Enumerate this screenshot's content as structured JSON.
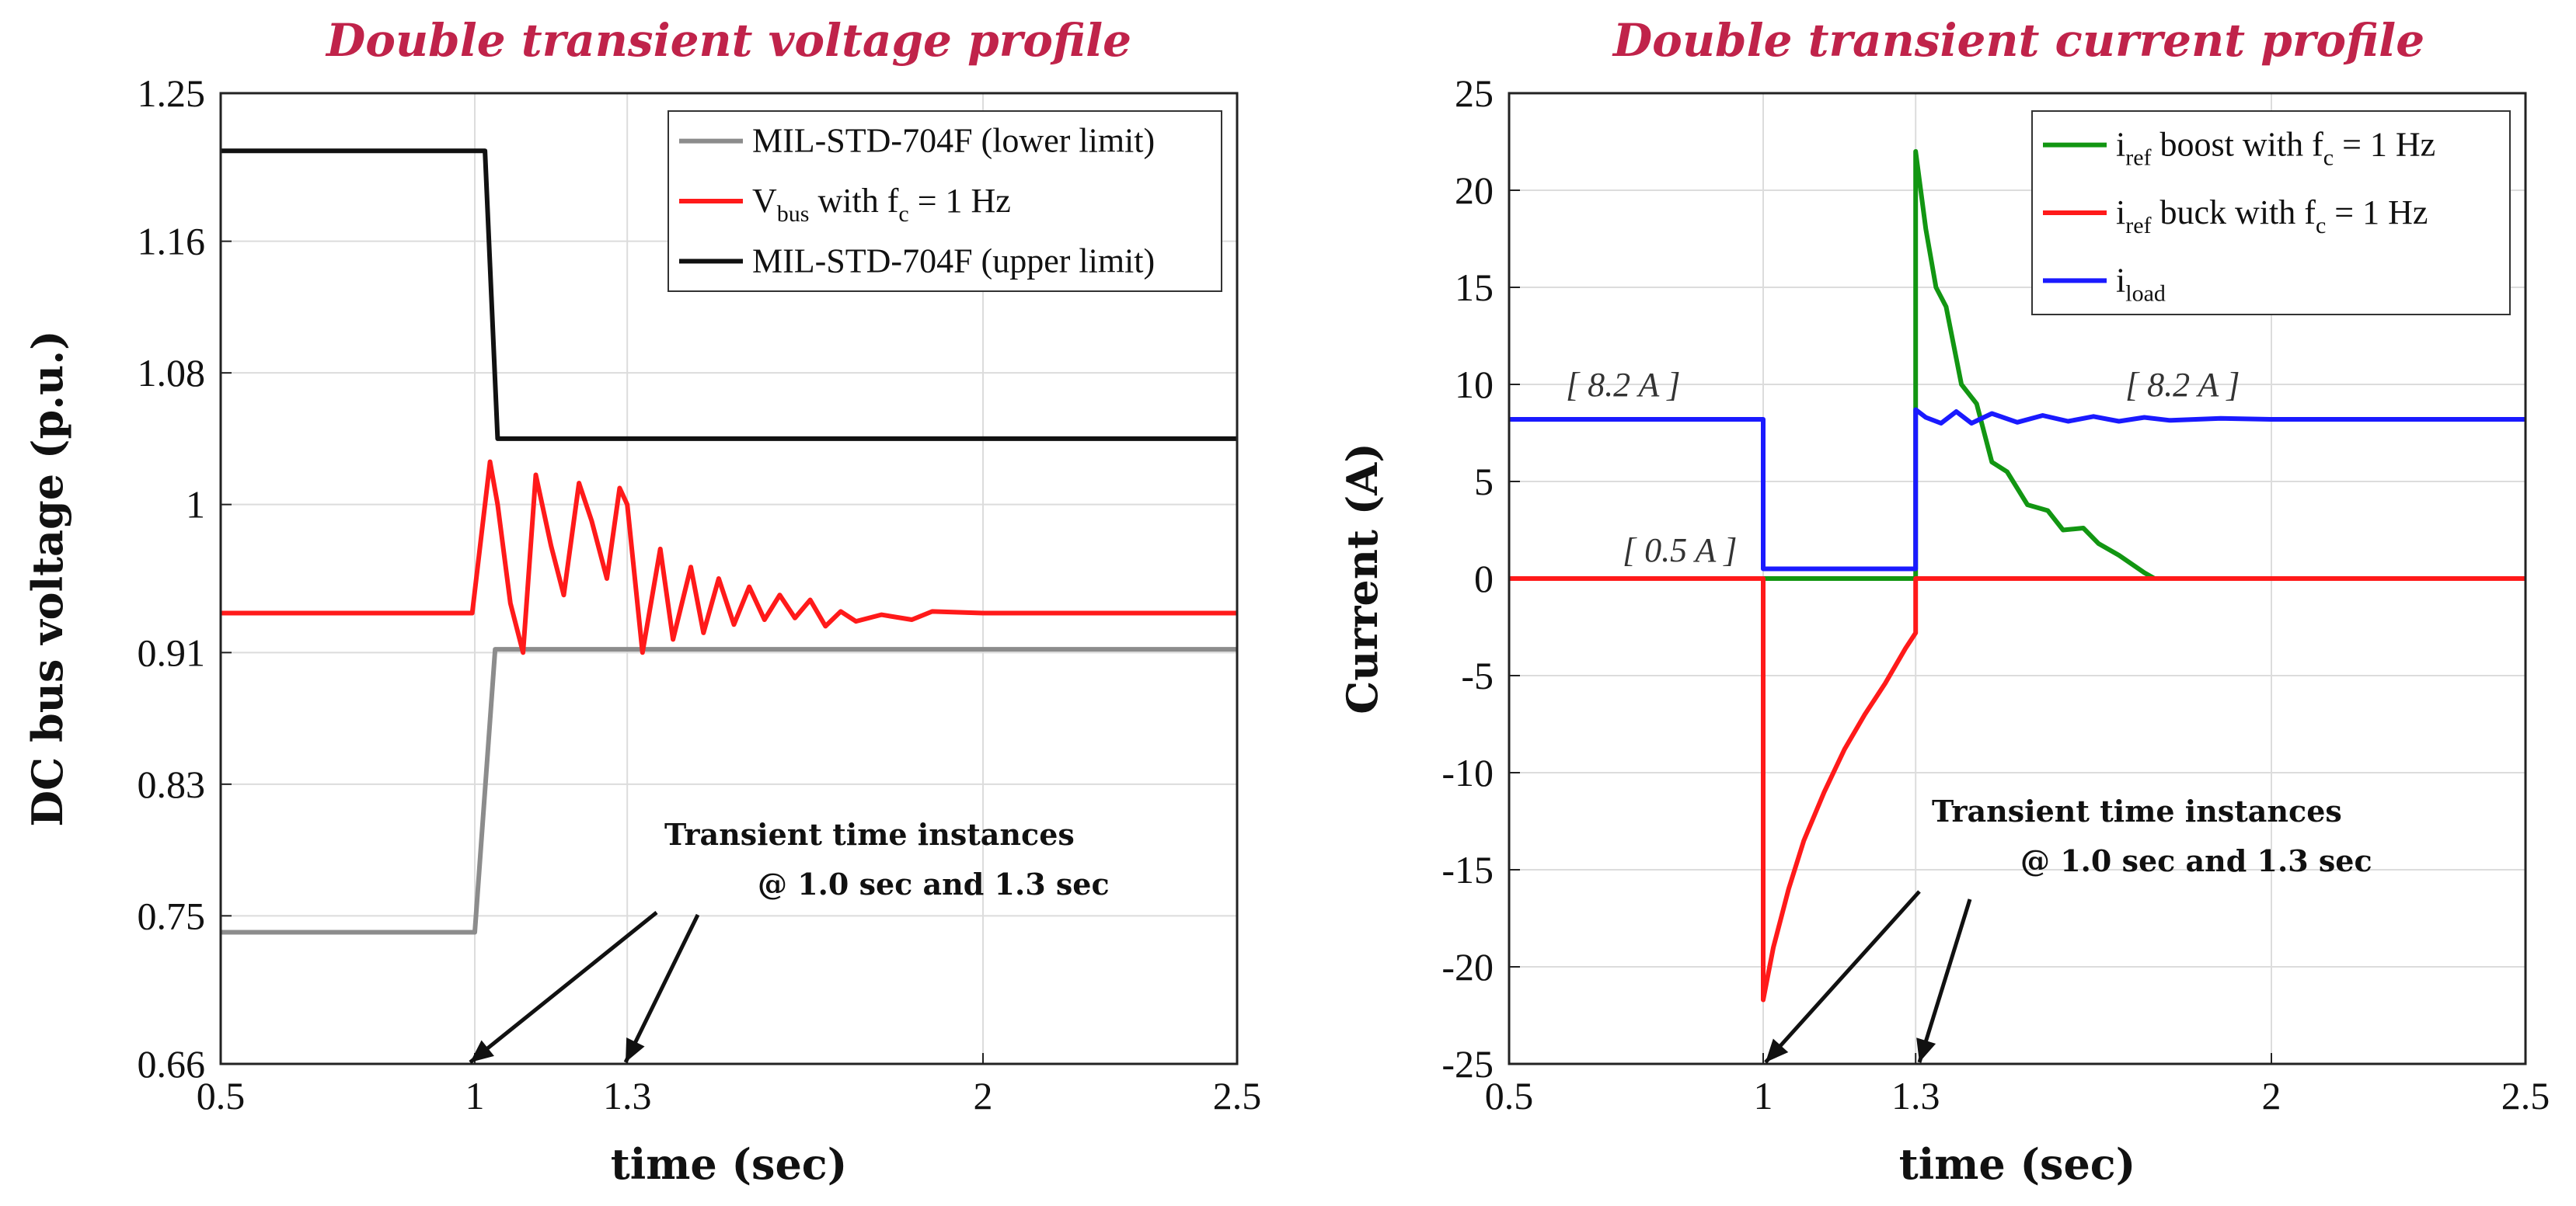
{
  "chart_data": [
    {
      "type": "line",
      "title": "Double transient voltage profile",
      "xlabel": "time (sec)",
      "ylabel": "DC bus voltage (p.u.)",
      "xlim": [
        0.5,
        2.5
      ],
      "ylim": [
        0.66,
        1.25
      ],
      "xticks": [
        "0.5",
        "1",
        "1.3",
        "2",
        "2.5"
      ],
      "yticks": [
        "1.25",
        "1.16",
        "1.08",
        "1",
        "0.91",
        "0.83",
        "0.75",
        "0.66"
      ],
      "grid": true,
      "legend_position": "top-right",
      "legend": [
        {
          "main": "MIL-STD-704F (lower limit)",
          "sub": "",
          "rest": ""
        },
        {
          "main": "V",
          "sub": "bus",
          "rest": " with f",
          "sub2": "c",
          "rest2": " =  1 Hz"
        },
        {
          "main": "MIL-STD-704F (upper limit)",
          "sub": "",
          "rest": ""
        }
      ],
      "annotation": {
        "line1": "Transient time instances",
        "line2": "@ 1.0 sec and 1.3 sec"
      },
      "series": [
        {
          "name": "MIL-STD-704F (lower limit)",
          "color": "#8c8c8c",
          "points": [
            [
              0.5,
              0.74
            ],
            [
              1.0,
              0.74
            ],
            [
              1.04,
              0.912
            ],
            [
              2.5,
              0.912
            ]
          ]
        },
        {
          "name": "Vbus with fc = 1 Hz",
          "color": "#ff1a1a",
          "points": [
            [
              0.5,
              0.934
            ],
            [
              0.995,
              0.934
            ],
            [
              1.03,
              1.026
            ],
            [
              1.045,
              1.0
            ],
            [
              1.07,
              0.94
            ],
            [
              1.095,
              0.91
            ],
            [
              1.12,
              1.018
            ],
            [
              1.15,
              0.975
            ],
            [
              1.175,
              0.945
            ],
            [
              1.205,
              1.013
            ],
            [
              1.23,
              0.99
            ],
            [
              1.26,
              0.955
            ],
            [
              1.285,
              1.01
            ],
            [
              1.3,
              1.0
            ],
            [
              1.33,
              0.91
            ],
            [
              1.365,
              0.973
            ],
            [
              1.39,
              0.918
            ],
            [
              1.425,
              0.962
            ],
            [
              1.45,
              0.922
            ],
            [
              1.48,
              0.955
            ],
            [
              1.51,
              0.927
            ],
            [
              1.54,
              0.95
            ],
            [
              1.57,
              0.93
            ],
            [
              1.6,
              0.945
            ],
            [
              1.63,
              0.931
            ],
            [
              1.66,
              0.942
            ],
            [
              1.69,
              0.926
            ],
            [
              1.72,
              0.935
            ],
            [
              1.75,
              0.929
            ],
            [
              1.8,
              0.933
            ],
            [
              1.86,
              0.93
            ],
            [
              1.9,
              0.935
            ],
            [
              2.0,
              0.934
            ],
            [
              2.5,
              0.934
            ]
          ]
        },
        {
          "name": "MIL-STD-704F (upper limit)",
          "color": "#111111",
          "points": [
            [
              0.5,
              1.215
            ],
            [
              1.02,
              1.215
            ],
            [
              1.045,
              1.04
            ],
            [
              2.5,
              1.04
            ]
          ]
        }
      ]
    },
    {
      "type": "line",
      "title": "Double transient current profile",
      "xlabel": "time (sec)",
      "ylabel": "Current (A)",
      "xlim": [
        0.5,
        2.5
      ],
      "ylim": [
        -25,
        25
      ],
      "xticks": [
        "0.5",
        "1",
        "1.3",
        "2",
        "2.5"
      ],
      "yticks": [
        "25",
        "20",
        "15",
        "10",
        "5",
        "0",
        "-5",
        "-10",
        "-15",
        "-20",
        "-25"
      ],
      "grid": true,
      "legend_position": "top-right",
      "legend": [
        {
          "main": "i",
          "sub": "ref",
          "rest": " boost with f",
          "sub2": "c",
          "rest2": " = 1 Hz"
        },
        {
          "main": "i",
          "sub": "ref",
          "rest": " buck with f",
          "sub2": "c",
          "rest2": " = 1 Hz"
        },
        {
          "main": "i",
          "sub": "load",
          "rest": ""
        }
      ],
      "bracket_labels": [
        "[ 8.2 A ]",
        "[ 0.5 A ]",
        "[ 8.2 A ]"
      ],
      "annotation": {
        "line1": "Transient time instances",
        "line2": "@ 1.0 sec and 1.3 sec"
      },
      "series": [
        {
          "name": "iref boost with fc = 1 Hz",
          "color": "#129612",
          "points": [
            [
              1.0,
              0
            ],
            [
              1.3,
              0
            ],
            [
              1.3,
              22
            ],
            [
              1.32,
              18
            ],
            [
              1.34,
              15
            ],
            [
              1.36,
              14
            ],
            [
              1.39,
              10
            ],
            [
              1.42,
              9
            ],
            [
              1.45,
              6
            ],
            [
              1.48,
              5.5
            ],
            [
              1.52,
              3.8
            ],
            [
              1.56,
              3.5
            ],
            [
              1.59,
              2.5
            ],
            [
              1.63,
              2.6
            ],
            [
              1.66,
              1.8
            ],
            [
              1.7,
              1.2
            ],
            [
              1.75,
              0.3
            ],
            [
              1.77,
              0
            ]
          ]
        },
        {
          "name": "iref buck with fc = 1 Hz",
          "color": "#ff1a1a",
          "points": [
            [
              0.5,
              0
            ],
            [
              1.0,
              0
            ],
            [
              1.0,
              -21.7
            ],
            [
              1.02,
              -19
            ],
            [
              1.05,
              -16
            ],
            [
              1.08,
              -13.5
            ],
            [
              1.12,
              -11
            ],
            [
              1.16,
              -8.8
            ],
            [
              1.2,
              -7
            ],
            [
              1.24,
              -5.4
            ],
            [
              1.28,
              -3.6
            ],
            [
              1.3,
              -2.8
            ],
            [
              1.3,
              0
            ],
            [
              2.5,
              0
            ]
          ]
        },
        {
          "name": "iload",
          "color": "#1a1aff",
          "points": [
            [
              0.5,
              8.2
            ],
            [
              1.0,
              8.2
            ],
            [
              1.0,
              0.5
            ],
            [
              1.3,
              0.5
            ],
            [
              1.3,
              8.7
            ],
            [
              1.32,
              8.3
            ],
            [
              1.35,
              8.0
            ],
            [
              1.38,
              8.6
            ],
            [
              1.41,
              8.0
            ],
            [
              1.45,
              8.5
            ],
            [
              1.5,
              8.05
            ],
            [
              1.55,
              8.4
            ],
            [
              1.6,
              8.1
            ],
            [
              1.65,
              8.35
            ],
            [
              1.7,
              8.1
            ],
            [
              1.75,
              8.3
            ],
            [
              1.8,
              8.15
            ],
            [
              1.9,
              8.25
            ],
            [
              2.0,
              8.2
            ],
            [
              2.5,
              8.2
            ]
          ]
        }
      ]
    }
  ]
}
